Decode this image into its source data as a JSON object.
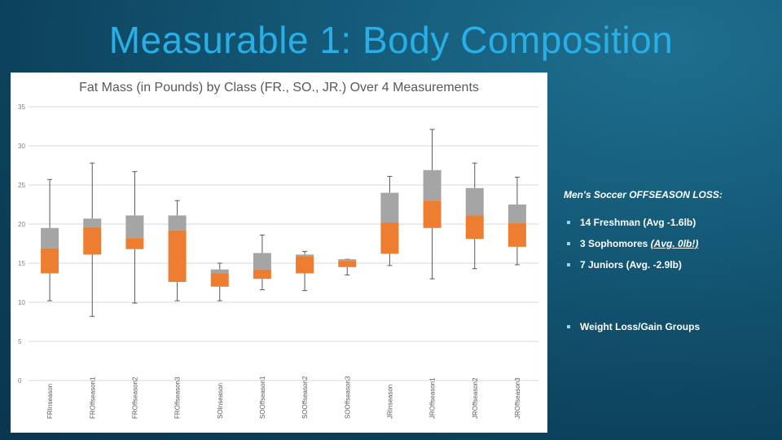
{
  "slide": {
    "title": "Measurable 1: Body Composition"
  },
  "summary": {
    "heading": "Men's Soccer OFFSEASON LOSS:",
    "items": [
      {
        "text": "14 Freshman (Avg -1.6lb)"
      },
      {
        "text": "3 Sophomores ",
        "emphasis": "(Avg. 0lb!)"
      },
      {
        "text": "7 Juniors (Avg. -2.9lb)"
      }
    ],
    "footer_item": "Weight Loss/Gain Groups"
  },
  "chart_data": {
    "type": "box",
    "title": "Fat Mass (in Pounds) by Class (FR., SO., JR.) Over 4 Measurements",
    "xlabel": "",
    "ylabel": "",
    "ylim": [
      0,
      35
    ],
    "yticks": [
      0,
      5,
      10,
      15,
      20,
      25,
      30,
      35
    ],
    "grid": true,
    "colors": {
      "lower_box": "#ed7d31",
      "upper_box": "#a5a5a5",
      "whisker": "#595959",
      "grid": "#d9d9d9"
    },
    "categories": [
      "FRInseason",
      "FROffseason1",
      "FROffseason2",
      "FROffseason3",
      "SOInseason",
      "SOOffseason1",
      "SOOffseason2",
      "SOOffseason3",
      "JRInseason",
      "JROffseason1",
      "JROffseason2",
      "JROffseason3"
    ],
    "boxes": [
      {
        "min": 10.2,
        "q1": 13.7,
        "median": 16.9,
        "q3": 19.5,
        "max": 25.7
      },
      {
        "min": 8.2,
        "q1": 16.1,
        "median": 19.6,
        "q3": 20.7,
        "max": 27.8
      },
      {
        "min": 9.9,
        "q1": 16.8,
        "median": 18.2,
        "q3": 21.1,
        "max": 26.7
      },
      {
        "min": 10.2,
        "q1": 12.6,
        "median": 19.2,
        "q3": 21.1,
        "max": 23.0
      },
      {
        "min": 10.2,
        "q1": 12.0,
        "median": 13.7,
        "q3": 14.2,
        "max": 15.0
      },
      {
        "min": 11.6,
        "q1": 13.0,
        "median": 14.2,
        "q3": 16.3,
        "max": 18.6
      },
      {
        "min": 11.5,
        "q1": 13.7,
        "median": 15.9,
        "q3": 16.1,
        "max": 16.5
      },
      {
        "min": 13.5,
        "q1": 14.5,
        "median": 15.3,
        "q3": 15.5,
        "max": 15.5
      },
      {
        "min": 14.7,
        "q1": 16.2,
        "median": 20.2,
        "q3": 24.0,
        "max": 26.1
      },
      {
        "min": 13.0,
        "q1": 19.5,
        "median": 23.0,
        "q3": 26.9,
        "max": 32.1
      },
      {
        "min": 14.3,
        "q1": 18.1,
        "median": 21.1,
        "q3": 24.6,
        "max": 27.8
      },
      {
        "min": 14.8,
        "q1": 17.1,
        "median": 20.1,
        "q3": 22.5,
        "max": 26.0
      }
    ]
  }
}
